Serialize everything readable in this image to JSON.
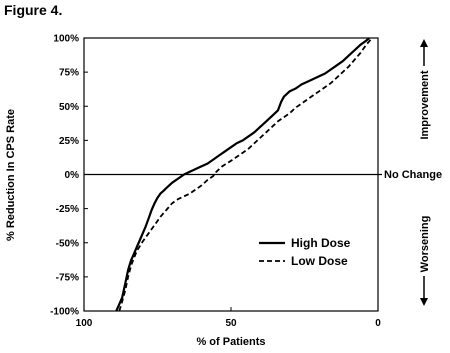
{
  "figure_label": "Figure 4.",
  "chart_data": {
    "type": "line",
    "title": "",
    "xlabel": "% of Patients",
    "ylabel": "% Reduction In CPS Rate",
    "xlim": [
      100,
      0
    ],
    "ylim": [
      -100,
      100
    ],
    "x_reversed": true,
    "x_ticks": [
      100,
      50,
      0
    ],
    "x_tick_labels": [
      "100",
      "50",
      "0"
    ],
    "y_ticks": [
      100,
      75,
      50,
      25,
      0,
      -25,
      -50,
      -75,
      -100
    ],
    "y_tick_labels": [
      "100%",
      "75%",
      "50%",
      "25%",
      "0%",
      "-25%",
      "-50%",
      "-75%",
      "-100%"
    ],
    "reference_line": {
      "y": 0,
      "label": "No Change"
    },
    "side_labels": {
      "top": "Improvement",
      "bottom": "Worsening"
    },
    "legend_position": "lower-right",
    "series": [
      {
        "name": "High Dose",
        "style": "solid",
        "x": [
          89,
          88,
          87,
          86,
          85,
          84,
          83,
          82,
          81,
          80,
          79,
          78,
          77,
          76,
          75,
          74,
          73,
          72,
          70,
          68,
          66,
          64,
          62,
          60,
          58,
          56,
          54,
          52,
          50,
          48,
          46,
          44,
          42,
          40,
          38,
          36,
          34,
          33,
          32,
          30,
          28,
          26,
          24,
          22,
          20,
          18,
          16,
          14,
          12,
          10,
          8,
          6,
          4,
          3
        ],
        "y": [
          -100,
          -95,
          -90,
          -80,
          -70,
          -63,
          -58,
          -53,
          -48,
          -43,
          -38,
          -32,
          -26,
          -21,
          -17,
          -14,
          -12,
          -10,
          -6,
          -3,
          0,
          2,
          4,
          6,
          8,
          11,
          14,
          17,
          20,
          23,
          25,
          28,
          31,
          35,
          39,
          43,
          47,
          53,
          57,
          61,
          63,
          66,
          68,
          70,
          72,
          74,
          77,
          80,
          83,
          87,
          91,
          95,
          98,
          100
        ]
      },
      {
        "name": "Low Dose",
        "style": "dashed",
        "x": [
          88,
          87,
          86,
          85,
          84,
          83,
          82,
          80,
          78,
          76,
          74,
          72,
          70,
          68,
          66,
          64,
          62,
          60,
          58,
          56,
          55,
          53,
          50,
          48,
          46,
          44,
          42,
          40,
          38,
          36,
          34,
          32,
          30,
          28,
          26,
          24,
          22,
          20,
          18,
          16,
          14,
          12,
          10,
          8,
          6,
          4,
          2
        ],
        "y": [
          -100,
          -93,
          -85,
          -75,
          -67,
          -61,
          -56,
          -49,
          -43,
          -37,
          -31,
          -26,
          -21,
          -18,
          -16,
          -14,
          -11,
          -8,
          -4,
          -1,
          2,
          6,
          10,
          13,
          16,
          19,
          23,
          27,
          31,
          35,
          39,
          42,
          45,
          49,
          52,
          55,
          58,
          61,
          64,
          67,
          71,
          75,
          79,
          84,
          89,
          95,
          100
        ]
      }
    ]
  }
}
